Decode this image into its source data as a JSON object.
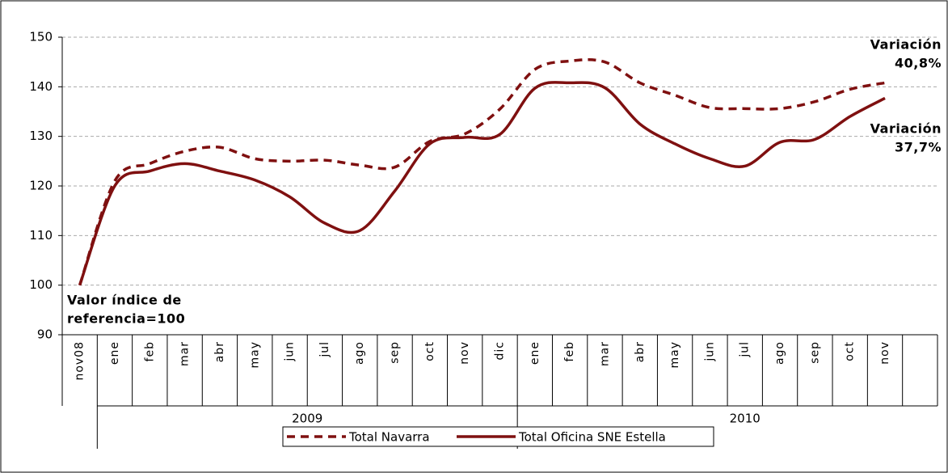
{
  "chart_data": {
    "type": "line",
    "categories": [
      "nov08",
      "ene",
      "feb",
      "mar",
      "abr",
      "may",
      "jun",
      "jul",
      "ago",
      "sep",
      "oct",
      "nov",
      "dic",
      "ene",
      "feb",
      "mar",
      "abr",
      "may",
      "jun",
      "jul",
      "ago",
      "sep",
      "oct",
      "nov",
      null
    ],
    "groups": [
      {
        "name": "2009",
        "count": 12
      },
      {
        "name": "2010",
        "count": 13
      }
    ],
    "series": [
      {
        "name": "Total Navarra",
        "color": "#7f1010",
        "dash": true,
        "values": [
          100,
          121,
          124.5,
          127,
          127.8,
          125.5,
          125,
          125.2,
          124.2,
          123.8,
          129,
          130.5,
          135.5,
          143.5,
          145.2,
          145,
          140.8,
          138.3,
          135.8,
          135.6,
          135.6,
          137,
          139.5,
          140.8,
          null
        ]
      },
      {
        "name": "Total Oficina SNE Estella",
        "color": "#7f1010",
        "dash": false,
        "values": [
          100,
          120,
          123,
          124.5,
          123,
          121.2,
          117.8,
          112.5,
          111,
          119,
          128.5,
          129.8,
          130.4,
          139.7,
          140.8,
          139.8,
          132.5,
          128.5,
          125.5,
          124,
          128.8,
          129.4,
          134,
          137.7,
          null
        ]
      }
    ],
    "ylim": [
      90,
      150
    ],
    "yticks": [
      90,
      100,
      110,
      120,
      130,
      140,
      150
    ],
    "grid": true,
    "legend": "bottom",
    "annotations": [
      {
        "lines": [
          "Valor índice de",
          "referencia=100"
        ]
      },
      {
        "lines": [
          "Variación",
          "40,8%"
        ]
      },
      {
        "lines": [
          "Variación",
          "37,7%"
        ]
      }
    ]
  }
}
